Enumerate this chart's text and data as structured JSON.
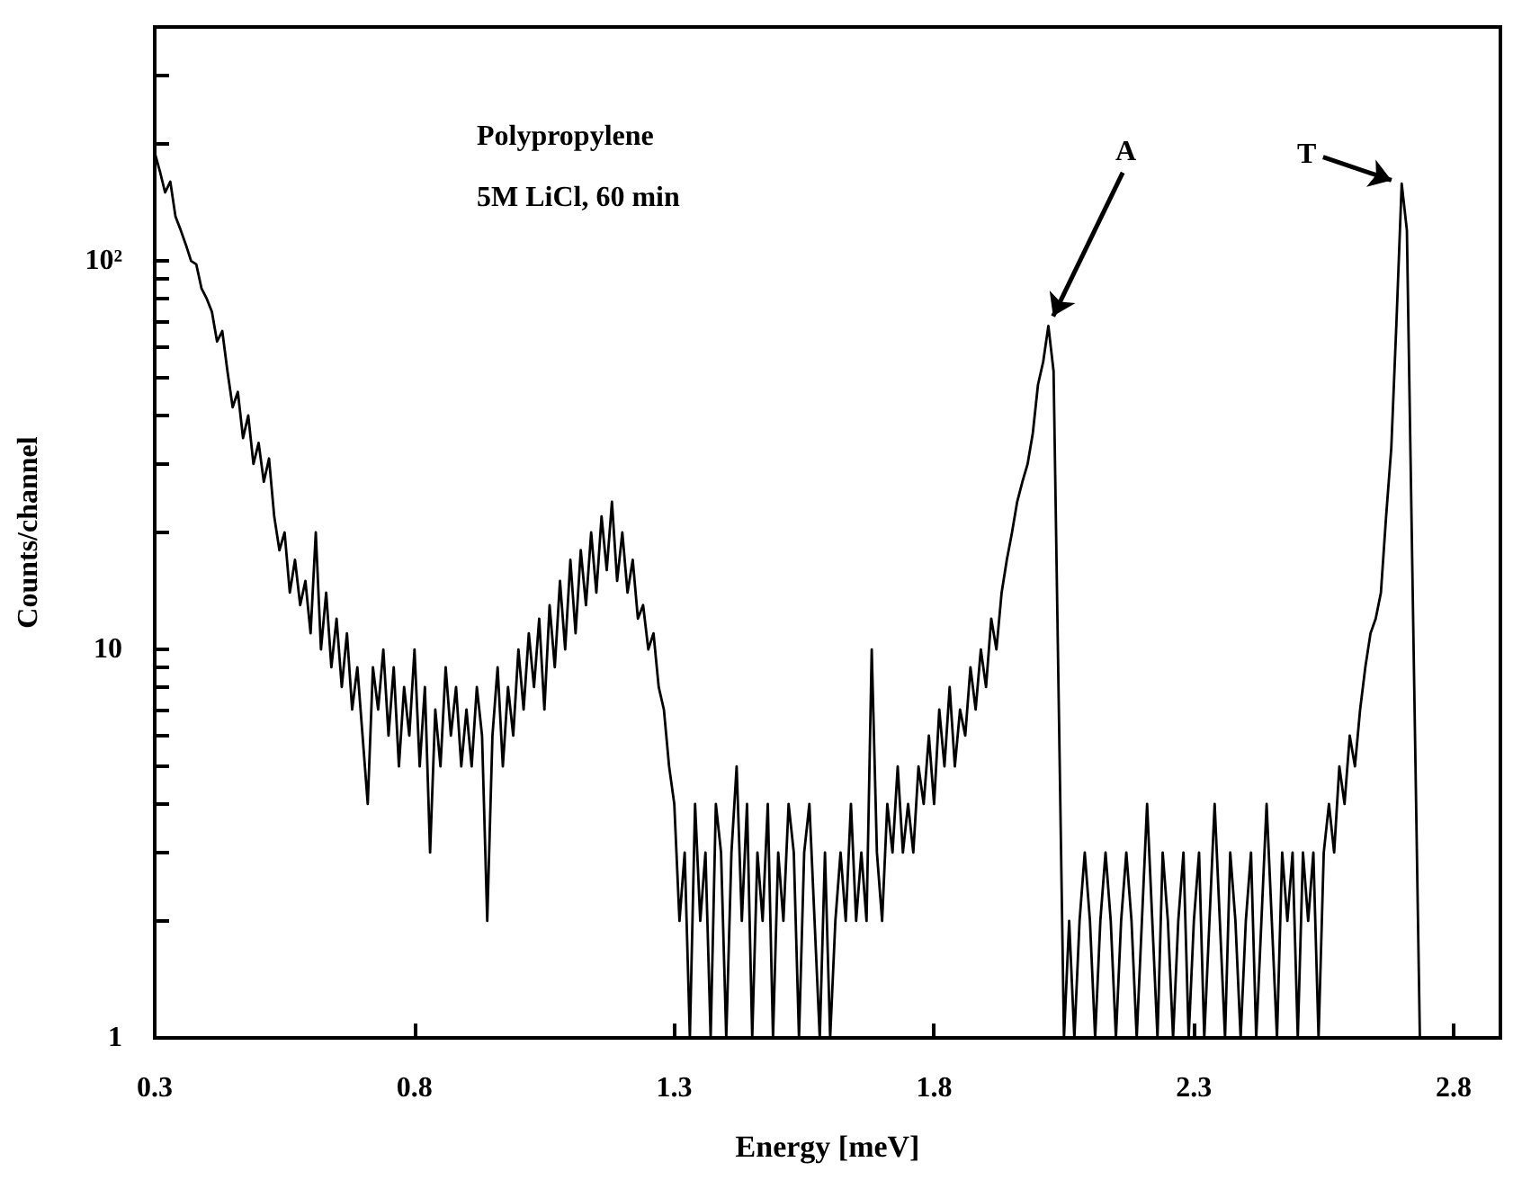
{
  "chart_data": {
    "type": "line",
    "xlabel": "Energy [meV]",
    "ylabel": "Counts/channel",
    "log": "y",
    "color": "#000000",
    "xlim": [
      0.3,
      2.89
    ],
    "xticks": [
      0.3,
      0.8,
      1.3,
      1.8,
      2.3,
      2.8
    ],
    "ylim": [
      1,
      400
    ],
    "yticks": [
      1,
      {
        "value": 2,
        "label": null
      },
      {
        "value": 3,
        "label": null
      },
      {
        "value": 4,
        "label": null
      },
      {
        "value": 5,
        "label": null
      },
      {
        "value": 6,
        "label": null
      },
      {
        "value": 7,
        "label": null
      },
      {
        "value": 8,
        "label": null
      },
      {
        "value": 9,
        "label": null
      },
      10,
      {
        "value": 20,
        "label": null
      },
      {
        "value": 30,
        "label": null
      },
      {
        "value": 40,
        "label": null
      },
      {
        "value": 50,
        "label": null
      },
      {
        "value": 60,
        "label": null
      },
      {
        "value": 70,
        "label": null
      },
      {
        "value": 80,
        "label": null
      },
      {
        "value": 90,
        "label": null
      },
      {
        "value": 100,
        "label": "10²"
      },
      {
        "value": 200,
        "label": null
      },
      {
        "value": 300,
        "label": null
      }
    ],
    "annotations": [
      "Polypropylene",
      "5M LiCl, 60 min",
      {
        "text": "A",
        "x": 2.02,
        "y": 68
      },
      {
        "text": "T",
        "x": 2.7,
        "y": 158
      }
    ],
    "x": [
      0.3,
      0.31,
      0.32,
      0.33,
      0.34,
      0.35,
      0.36,
      0.37,
      0.38,
      0.39,
      0.4,
      0.41,
      0.42,
      0.43,
      0.44,
      0.45,
      0.46,
      0.47,
      0.48,
      0.49,
      0.5,
      0.51,
      0.52,
      0.53,
      0.54,
      0.55,
      0.56,
      0.57,
      0.58,
      0.59,
      0.6,
      0.61,
      0.62,
      0.63,
      0.64,
      0.65,
      0.66,
      0.67,
      0.68,
      0.69,
      0.7,
      0.71,
      0.72,
      0.73,
      0.74,
      0.75,
      0.76,
      0.77,
      0.78,
      0.79,
      0.8,
      0.81,
      0.82,
      0.83,
      0.84,
      0.85,
      0.86,
      0.87,
      0.88,
      0.89,
      0.9,
      0.91,
      0.92,
      0.93,
      0.94,
      0.95,
      0.96,
      0.97,
      0.98,
      0.99,
      1.0,
      1.01,
      1.02,
      1.03,
      1.04,
      1.05,
      1.06,
      1.07,
      1.08,
      1.09,
      1.1,
      1.11,
      1.12,
      1.13,
      1.14,
      1.15,
      1.16,
      1.17,
      1.18,
      1.19,
      1.2,
      1.21,
      1.22,
      1.23,
      1.24,
      1.25,
      1.26,
      1.27,
      1.28,
      1.29,
      1.3,
      1.31,
      1.32,
      1.33,
      1.34,
      1.35,
      1.36,
      1.37,
      1.38,
      1.39,
      1.4,
      1.41,
      1.42,
      1.43,
      1.44,
      1.45,
      1.46,
      1.47,
      1.48,
      1.49,
      1.5,
      1.51,
      1.52,
      1.53,
      1.54,
      1.55,
      1.56,
      1.57,
      1.58,
      1.59,
      1.6,
      1.61,
      1.62,
      1.63,
      1.64,
      1.65,
      1.66,
      1.67,
      1.68,
      1.69,
      1.7,
      1.71,
      1.72,
      1.73,
      1.74,
      1.75,
      1.76,
      1.77,
      1.78,
      1.79,
      1.8,
      1.81,
      1.82,
      1.83,
      1.84,
      1.85,
      1.86,
      1.87,
      1.88,
      1.89,
      1.9,
      1.91,
      1.92,
      1.93,
      1.94,
      1.95,
      1.96,
      1.97,
      1.98,
      1.99,
      2.0,
      2.01,
      2.02,
      2.03,
      2.05,
      2.06,
      2.07,
      2.08,
      2.09,
      2.1,
      2.11,
      2.12,
      2.13,
      2.14,
      2.15,
      2.16,
      2.17,
      2.18,
      2.19,
      2.2,
      2.21,
      2.22,
      2.23,
      2.24,
      2.25,
      2.26,
      2.27,
      2.28,
      2.29,
      2.3,
      2.31,
      2.32,
      2.33,
      2.34,
      2.35,
      2.36,
      2.37,
      2.38,
      2.39,
      2.4,
      2.41,
      2.42,
      2.43,
      2.44,
      2.45,
      2.46,
      2.47,
      2.48,
      2.49,
      2.5,
      2.51,
      2.52,
      2.53,
      2.54,
      2.55,
      2.56,
      2.57,
      2.58,
      2.59,
      2.6,
      2.61,
      2.62,
      2.63,
      2.64,
      2.65,
      2.66,
      2.67,
      2.68,
      2.69,
      2.7,
      2.71,
      2.735
    ],
    "values": [
      190,
      170,
      150,
      160,
      130,
      120,
      110,
      100,
      98,
      85,
      80,
      74,
      62,
      66,
      52,
      42,
      46,
      35,
      40,
      30,
      34,
      27,
      31,
      22,
      18,
      20,
      14,
      17,
      13,
      15,
      11,
      20,
      10,
      14,
      9,
      12,
      8,
      11,
      7,
      9,
      6,
      4,
      9,
      7,
      10,
      6,
      9,
      5,
      8,
      6,
      10,
      5,
      8,
      3,
      7,
      5,
      9,
      6,
      8,
      5,
      7,
      5,
      8,
      6,
      2,
      6,
      9,
      5,
      8,
      6,
      10,
      7,
      11,
      8,
      12,
      7,
      13,
      9,
      15,
      10,
      17,
      11,
      18,
      13,
      20,
      14,
      22,
      16,
      24,
      15,
      20,
      14,
      17,
      12,
      13,
      10,
      11,
      8,
      7,
      5,
      4,
      2,
      3,
      1,
      4,
      2,
      3,
      1,
      4,
      3,
      1,
      3,
      5,
      2,
      4,
      1,
      3,
      2,
      4,
      1,
      3,
      2,
      4,
      3,
      1,
      3,
      4,
      2,
      1,
      3,
      1,
      2,
      3,
      2,
      4,
      2,
      3,
      2,
      10,
      3,
      2,
      4,
      3,
      5,
      3,
      4,
      3,
      5,
      4,
      6,
      4,
      7,
      5,
      8,
      5,
      7,
      6,
      9,
      7,
      10,
      8,
      12,
      10,
      14,
      17,
      20,
      24,
      27,
      30,
      36,
      48,
      55,
      68,
      52,
      1,
      2,
      1,
      2,
      3,
      2,
      1,
      2,
      3,
      2,
      1,
      2,
      3,
      2,
      1,
      2,
      4,
      2,
      1,
      3,
      2,
      1,
      2,
      3,
      1,
      2,
      3,
      1,
      2,
      4,
      2,
      1,
      3,
      2,
      1,
      2,
      3,
      1,
      2,
      4,
      2,
      1,
      3,
      2,
      3,
      1,
      3,
      2,
      3,
      1,
      3,
      4,
      3,
      5,
      4,
      6,
      5,
      7,
      9,
      11,
      12,
      14,
      22,
      33,
      70,
      158,
      120,
      1
    ]
  }
}
